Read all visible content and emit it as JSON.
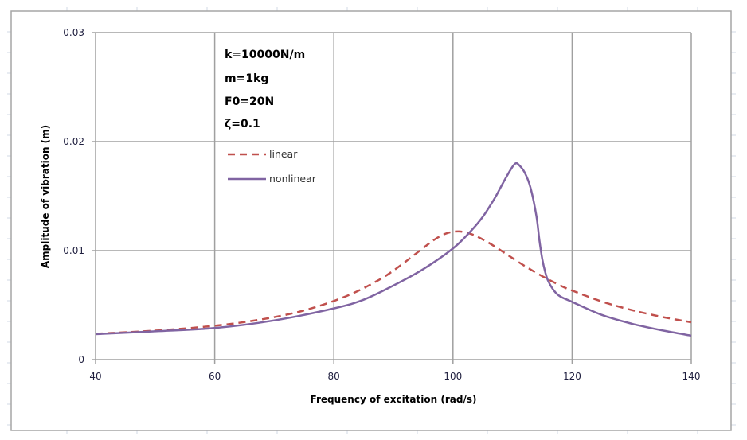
{
  "chart_data": {
    "type": "line",
    "title": "",
    "xlabel": "Frequency of excitation (rad/s)",
    "ylabel": "Amplitude of vibration (m)",
    "xlim": [
      40,
      140
    ],
    "ylim": [
      0,
      0.03
    ],
    "x_ticks": [
      40,
      60,
      80,
      100,
      120,
      140
    ],
    "x_tick_labels": [
      "40",
      "60",
      "80",
      "100",
      "120",
      "140"
    ],
    "y_ticks": [
      0,
      0.01,
      0.02,
      0.03
    ],
    "y_tick_labels": [
      "0",
      "0.01",
      "0.02",
      "0.03"
    ],
    "grid": true,
    "legend_position": "upper-left-inside",
    "annotation_lines": [
      "k=10000N/m",
      "m=1kg",
      "F0=20N",
      "ζ=0.1"
    ],
    "series": [
      {
        "name": "linear",
        "color": "#c0504d",
        "style": "dashed",
        "x": [
          40,
          45,
          50,
          55,
          60,
          65,
          70,
          75,
          80,
          84,
          88,
          90,
          92,
          94,
          96,
          97,
          98,
          99,
          100,
          101,
          102,
          103,
          104,
          106,
          108,
          110,
          112,
          115,
          118,
          120,
          125,
          130,
          135,
          140
        ],
        "y": [
          0.00237,
          0.00251,
          0.00266,
          0.00286,
          0.00311,
          0.00345,
          0.0039,
          0.00451,
          0.00538,
          0.00629,
          0.00745,
          0.00817,
          0.00897,
          0.00982,
          0.01066,
          0.01105,
          0.01137,
          0.0116,
          0.01173,
          0.01176,
          0.01169,
          0.01153,
          0.01131,
          0.01072,
          0.01003,
          0.00931,
          0.00861,
          0.00765,
          0.00681,
          0.00634,
          0.00533,
          0.00455,
          0.00393,
          0.00343
        ]
      },
      {
        "name": "nonlinear",
        "color": "#8064a2",
        "style": "solid",
        "x": [
          40,
          50,
          60,
          70,
          80,
          85,
          90,
          95,
          100,
          103,
          105,
          107,
          108,
          109,
          110,
          110.5,
          111,
          112,
          113,
          114,
          114.5,
          115,
          115.5,
          116,
          117,
          118,
          120,
          125,
          130,
          135,
          140
        ],
        "y": [
          0.00234,
          0.0026,
          0.0029,
          0.0036,
          0.0047,
          0.0055,
          0.0068,
          0.0083,
          0.0102,
          0.0118,
          0.0131,
          0.0148,
          0.0158,
          0.0168,
          0.0177,
          0.018,
          0.0179,
          0.0172,
          0.0158,
          0.0132,
          0.011,
          0.0092,
          0.008,
          0.0072,
          0.0063,
          0.0058,
          0.0053,
          0.0041,
          0.0033,
          0.0027,
          0.0022
        ]
      }
    ]
  }
}
